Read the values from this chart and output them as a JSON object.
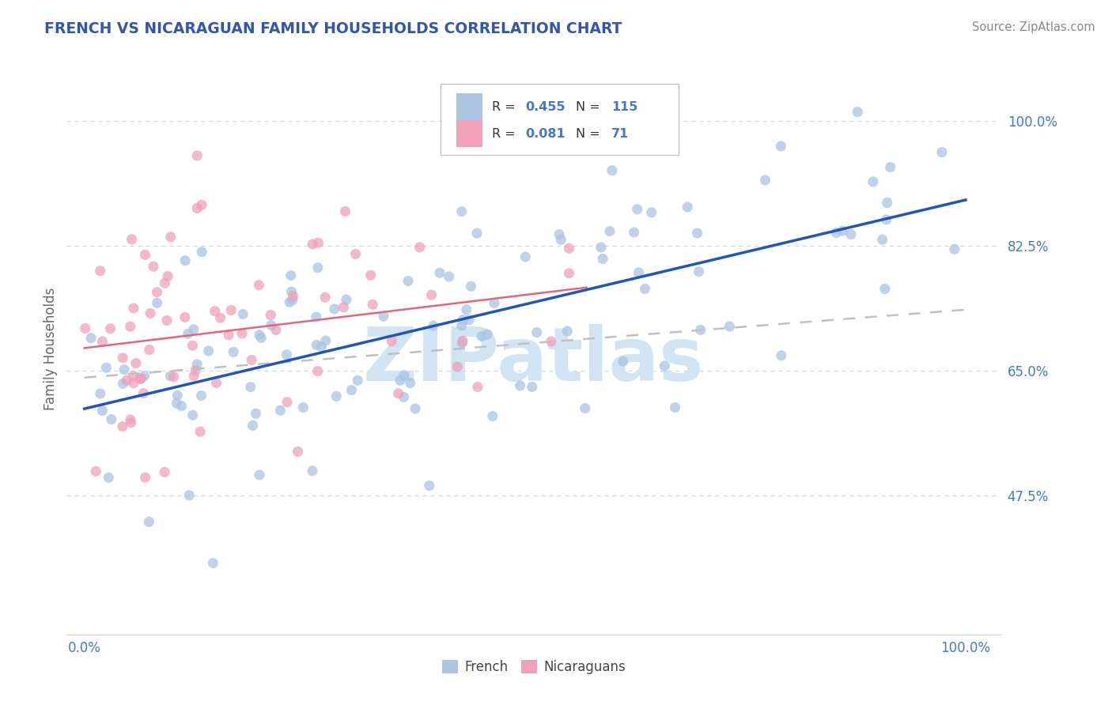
{
  "title": "FRENCH VS NICARAGUAN FAMILY HOUSEHOLDS CORRELATION CHART",
  "source": "Source: ZipAtlas.com",
  "ylabel": "Family Households",
  "french_R": 0.455,
  "french_N": 115,
  "nicaraguan_R": 0.081,
  "nicaraguan_N": 71,
  "french_color": "#aac4e2",
  "nicaraguan_color": "#f0a0b8",
  "french_line_color": "#2255bb",
  "nicaraguan_line_color": "#e06878",
  "gray_dash_color": "#c0c0c0",
  "grid_color": "#c8d8ec",
  "title_color": "#3355aa",
  "tick_color": "#4477cc",
  "ylabel_color": "#666666",
  "source_color": "#888888",
  "watermark": "ZIPatlas",
  "watermark_color": "#d0e4f4",
  "ytick_vals": [
    0.475,
    0.65,
    0.825,
    1.0
  ],
  "ytick_labels": [
    "47.5%",
    "65.0%",
    "82.5%",
    "100.0%"
  ],
  "xlim": [
    -0.02,
    1.04
  ],
  "ylim": [
    0.28,
    1.08
  ]
}
